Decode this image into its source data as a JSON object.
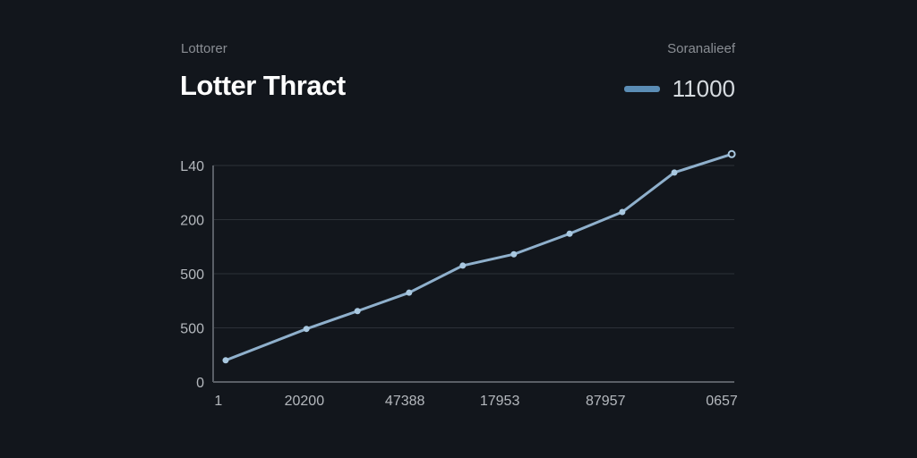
{
  "chart_data": {
    "type": "line",
    "subtitle": "Lottorer",
    "title": "Lotter Thract",
    "legend_label": "Soranalieef",
    "legend_placement": "top-right",
    "series": [
      {
        "name": "11000",
        "x": [
          2.4,
          17.9,
          27.7,
          37.6,
          47.9,
          57.7,
          68.4,
          78.5,
          88.5,
          99.5
        ],
        "values": [
          0.4,
          0.98,
          1.31,
          1.65,
          2.15,
          2.36,
          2.74,
          3.14,
          3.87,
          4.21
        ]
      }
    ],
    "xlim": [
      0,
      100
    ],
    "ylim": [
      0,
      4
    ],
    "y_ticks": [
      {
        "value": 0,
        "label": "0"
      },
      {
        "value": 1,
        "label": "500"
      },
      {
        "value": 2,
        "label": "500"
      },
      {
        "value": 3,
        "label": "200"
      },
      {
        "value": 4,
        "label": "L40"
      }
    ],
    "x_ticks": [
      {
        "value": 1,
        "label": "1"
      },
      {
        "value": 17.5,
        "label": "20200"
      },
      {
        "value": 36.8,
        "label": "47388"
      },
      {
        "value": 55,
        "label": "17953"
      },
      {
        "value": 75.3,
        "label": "87957"
      },
      {
        "value": 97.6,
        "label": "0657"
      }
    ],
    "grid": true,
    "colors": {
      "line": "#8fb0cc",
      "legend_swatch": "#5b8db5",
      "grid": "#2c3138",
      "axis": "#5a5f66"
    }
  }
}
